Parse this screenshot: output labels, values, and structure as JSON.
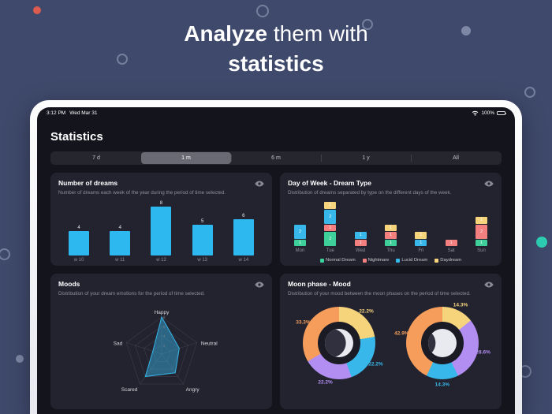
{
  "hero": {
    "line1_bold": "Analyze",
    "line1_rest": " them with",
    "line2": "statistics"
  },
  "status_bar": {
    "time": "3:12 PM",
    "date": "Wed Mar 31",
    "battery": "100%"
  },
  "app": {
    "title": "Statistics",
    "ranges": [
      "7 d",
      "1 m",
      "6 m",
      "1 y",
      "All"
    ],
    "selected_range": "1 m"
  },
  "cards": [
    {
      "title": "Number of dreams",
      "subtitle": "Number of dreams each week of the year during the period of time selected."
    },
    {
      "title": "Day of Week - Dream Type",
      "subtitle": "Distribution of dreams separated by type on the different days of the week."
    },
    {
      "title": "Moods",
      "subtitle": "Distribution of your dream emotions for the period of time selected."
    },
    {
      "title": "Moon phase - Mood",
      "subtitle": "Distribution of your mood between the moon phases on the period of time selected."
    }
  ],
  "icons": {
    "card_action": "eye-icon",
    "status_right": [
      "wifi-icon",
      "battery-icon"
    ]
  },
  "colors": {
    "accent_cyan": "#35b6e9",
    "normal_dream": "#3ecf9a",
    "nightmare": "#f37f7f",
    "lucid_dream": "#38b8ea",
    "daydream": "#f6d47c",
    "donut_orange": "#f69d5b",
    "donut_yellow": "#f6d47c",
    "donut_purple": "#b28df2",
    "donut_cyan": "#38b8ea"
  },
  "chart_data": [
    {
      "id": "number-of-dreams",
      "type": "bar",
      "categories": [
        "w 10",
        "w 11",
        "w 12",
        "w 13",
        "w 14"
      ],
      "values": [
        4,
        4,
        8,
        5,
        6
      ],
      "bar_color": "#2eb8f0",
      "ylim": [
        0,
        8
      ],
      "grid": false
    },
    {
      "id": "dream-type-by-day",
      "type": "stacked-bar",
      "categories": [
        "Mon",
        "Tue",
        "Wed",
        "Thu",
        "Fri",
        "Sat",
        "Sun"
      ],
      "series": [
        {
          "name": "Normal Dream",
          "color": "#3ecf9a",
          "values": [
            1,
            2,
            0,
            1,
            0,
            0,
            1
          ]
        },
        {
          "name": "Nightmare",
          "color": "#f37f7f",
          "values": [
            0,
            1,
            1,
            1,
            0,
            1,
            2
          ]
        },
        {
          "name": "Lucid Dream",
          "color": "#38b8ea",
          "values": [
            2,
            2,
            1,
            0,
            1,
            0,
            0
          ]
        },
        {
          "name": "Daydream",
          "color": "#f6d47c",
          "values": [
            0,
            1,
            0,
            1,
            1,
            0,
            1
          ]
        }
      ],
      "legend_position": "bottom"
    },
    {
      "id": "moods-radar",
      "type": "radar",
      "axes": [
        "Happy",
        "Neutral",
        "Angry",
        "Scared",
        "Sad"
      ],
      "values": [
        8,
        4,
        5,
        6,
        2
      ],
      "max": 8,
      "ticks": [
        2,
        4,
        6,
        8
      ],
      "fill": "rgba(53,182,233,0.45)",
      "stroke": "#35b6e9"
    },
    {
      "id": "moon-phase-mood",
      "type": "donut-pair",
      "donuts": [
        {
          "moon": "waxing-crescent",
          "segments": [
            {
              "pct": 22.2,
              "color": "#f6d47c"
            },
            {
              "pct": 22.2,
              "color": "#38b8ea"
            },
            {
              "pct": 22.2,
              "color": "#b28df2"
            },
            {
              "pct": 33.3,
              "color": "#f69d5b"
            }
          ]
        },
        {
          "moon": "waxing-gibbous",
          "segments": [
            {
              "pct": 14.3,
              "color": "#f6d47c"
            },
            {
              "pct": 28.6,
              "color": "#b28df2"
            },
            {
              "pct": 14.3,
              "color": "#38b8ea"
            },
            {
              "pct": 42.9,
              "color": "#f69d5b"
            }
          ]
        }
      ]
    }
  ]
}
